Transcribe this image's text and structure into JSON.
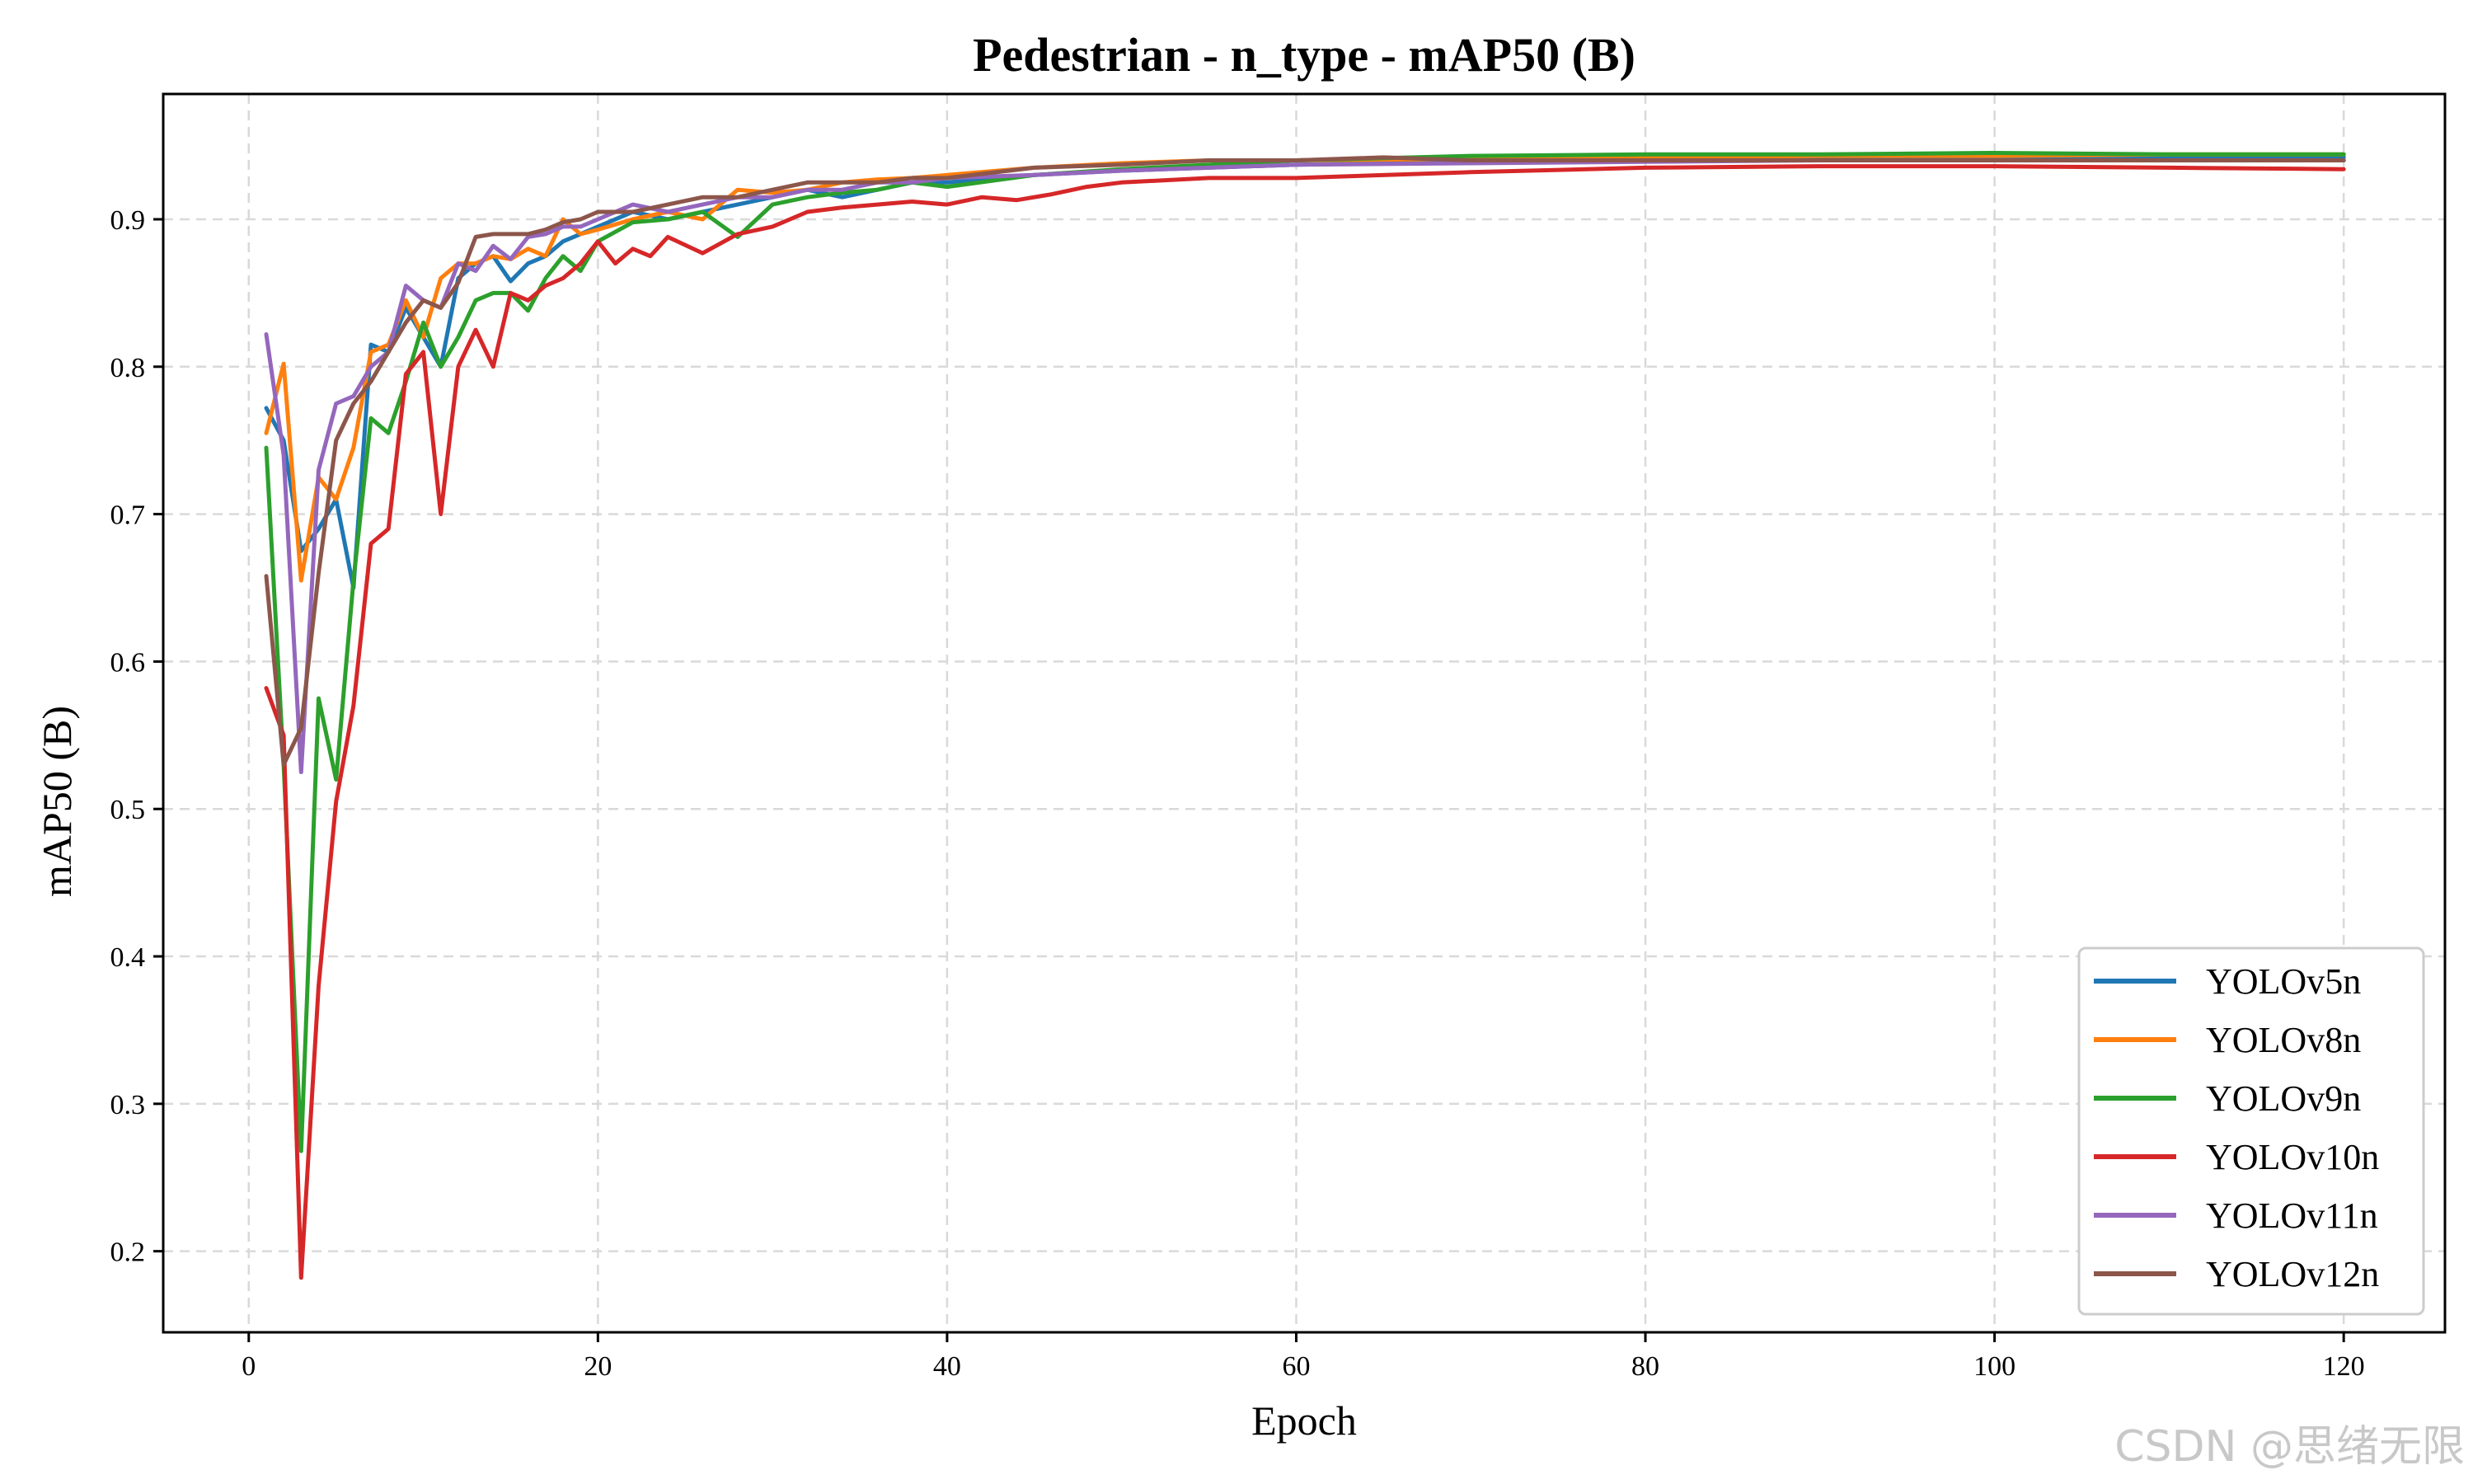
{
  "chart_data": {
    "type": "line",
    "title": "Pedestrian - n_type - mAP50 (B)",
    "xlabel": "Epoch",
    "ylabel": "mAP50 (B)",
    "xlim": [
      -4.9,
      125.8
    ],
    "ylim": [
      0.145,
      0.985
    ],
    "xticks": [
      0,
      20,
      40,
      60,
      80,
      100,
      120
    ],
    "yticks": [
      0.2,
      0.3,
      0.4,
      0.5,
      0.6,
      0.7,
      0.8,
      0.9
    ],
    "xtick_labels": [
      "0",
      "20",
      "40",
      "60",
      "80",
      "100",
      "120"
    ],
    "ytick_labels": [
      "0.2",
      "0.3",
      "0.4",
      "0.5",
      "0.6",
      "0.7",
      "0.8",
      "0.9"
    ],
    "grid": true,
    "legend_position": "lower-right",
    "series": [
      {
        "name": "YOLOv5n",
        "color": "#1f77b4",
        "x": [
          1,
          2,
          3,
          4,
          5,
          6,
          7,
          8,
          9,
          10,
          11,
          12,
          13,
          14,
          15,
          16,
          17,
          18,
          19,
          20,
          22,
          24,
          26,
          28,
          30,
          32,
          34,
          36,
          38,
          40,
          45,
          50,
          55,
          60,
          70,
          80,
          90,
          100,
          110,
          120
        ],
        "values": [
          0.772,
          0.75,
          0.675,
          0.69,
          0.71,
          0.65,
          0.815,
          0.81,
          0.84,
          0.82,
          0.8,
          0.86,
          0.87,
          0.875,
          0.858,
          0.87,
          0.875,
          0.885,
          0.89,
          0.895,
          0.905,
          0.9,
          0.905,
          0.91,
          0.915,
          0.92,
          0.915,
          0.92,
          0.925,
          0.925,
          0.93,
          0.933,
          0.935,
          0.937,
          0.939,
          0.94,
          0.941,
          0.942,
          0.942,
          0.942
        ]
      },
      {
        "name": "YOLOv8n",
        "color": "#ff7f0e",
        "x": [
          1,
          2,
          3,
          4,
          5,
          6,
          7,
          8,
          9,
          10,
          11,
          12,
          13,
          14,
          15,
          16,
          17,
          18,
          19,
          20,
          22,
          24,
          26,
          28,
          30,
          32,
          34,
          36,
          38,
          40,
          45,
          50,
          55,
          60,
          70,
          80,
          90,
          100,
          110,
          120
        ],
        "values": [
          0.755,
          0.802,
          0.655,
          0.725,
          0.71,
          0.745,
          0.81,
          0.815,
          0.845,
          0.82,
          0.86,
          0.87,
          0.87,
          0.875,
          0.873,
          0.88,
          0.875,
          0.9,
          0.89,
          0.893,
          0.9,
          0.905,
          0.9,
          0.92,
          0.918,
          0.92,
          0.925,
          0.927,
          0.928,
          0.93,
          0.935,
          0.938,
          0.94,
          0.94,
          0.941,
          0.942,
          0.943,
          0.943,
          0.944,
          0.944
        ]
      },
      {
        "name": "YOLOv9n",
        "color": "#2ca02c",
        "x": [
          1,
          2,
          3,
          4,
          5,
          6,
          7,
          8,
          9,
          10,
          11,
          12,
          13,
          14,
          15,
          16,
          17,
          18,
          19,
          20,
          22,
          24,
          26,
          28,
          30,
          32,
          34,
          36,
          38,
          40,
          45,
          50,
          55,
          60,
          70,
          80,
          90,
          100,
          110,
          120
        ],
        "values": [
          0.745,
          0.53,
          0.268,
          0.575,
          0.52,
          0.655,
          0.765,
          0.755,
          0.79,
          0.83,
          0.8,
          0.82,
          0.845,
          0.85,
          0.85,
          0.838,
          0.86,
          0.875,
          0.865,
          0.885,
          0.898,
          0.9,
          0.905,
          0.888,
          0.91,
          0.915,
          0.918,
          0.92,
          0.925,
          0.922,
          0.93,
          0.934,
          0.937,
          0.94,
          0.943,
          0.944,
          0.944,
          0.945,
          0.944,
          0.944
        ]
      },
      {
        "name": "YOLOv10n",
        "color": "#d62728",
        "x": [
          1,
          2,
          3,
          4,
          5,
          6,
          7,
          8,
          9,
          10,
          11,
          12,
          13,
          14,
          15,
          16,
          17,
          18,
          19,
          20,
          21,
          22,
          23,
          24,
          26,
          28,
          30,
          32,
          34,
          36,
          38,
          40,
          42,
          44,
          46,
          48,
          50,
          55,
          60,
          70,
          80,
          90,
          100,
          110,
          120
        ],
        "values": [
          0.582,
          0.55,
          0.182,
          0.38,
          0.505,
          0.57,
          0.68,
          0.69,
          0.795,
          0.81,
          0.7,
          0.8,
          0.825,
          0.8,
          0.85,
          0.845,
          0.855,
          0.86,
          0.87,
          0.885,
          0.87,
          0.88,
          0.875,
          0.888,
          0.877,
          0.89,
          0.895,
          0.905,
          0.908,
          0.91,
          0.912,
          0.91,
          0.915,
          0.913,
          0.917,
          0.922,
          0.925,
          0.928,
          0.928,
          0.932,
          0.935,
          0.936,
          0.936,
          0.935,
          0.934
        ]
      },
      {
        "name": "YOLOv11n",
        "color": "#9467bd",
        "x": [
          1,
          2,
          3,
          4,
          5,
          6,
          7,
          8,
          9,
          10,
          11,
          12,
          13,
          14,
          15,
          16,
          17,
          18,
          19,
          20,
          22,
          24,
          26,
          28,
          30,
          32,
          34,
          36,
          38,
          40,
          45,
          50,
          55,
          60,
          70,
          80,
          90,
          100,
          110,
          120
        ],
        "values": [
          0.822,
          0.74,
          0.525,
          0.73,
          0.775,
          0.78,
          0.8,
          0.81,
          0.855,
          0.845,
          0.84,
          0.87,
          0.865,
          0.882,
          0.873,
          0.888,
          0.89,
          0.895,
          0.895,
          0.9,
          0.91,
          0.905,
          0.91,
          0.915,
          0.915,
          0.92,
          0.92,
          0.925,
          0.925,
          0.928,
          0.93,
          0.933,
          0.935,
          0.937,
          0.938,
          0.939,
          0.94,
          0.94,
          0.94,
          0.94
        ]
      },
      {
        "name": "YOLOv12n",
        "color": "#8c564b",
        "x": [
          1,
          2,
          3,
          4,
          5,
          6,
          7,
          8,
          9,
          10,
          11,
          12,
          13,
          14,
          15,
          16,
          17,
          18,
          19,
          20,
          22,
          24,
          26,
          28,
          30,
          32,
          34,
          36,
          38,
          40,
          45,
          50,
          55,
          60,
          65,
          70,
          80,
          90,
          100,
          110,
          120
        ],
        "values": [
          0.658,
          0.53,
          0.555,
          0.66,
          0.75,
          0.775,
          0.79,
          0.81,
          0.83,
          0.845,
          0.84,
          0.857,
          0.888,
          0.89,
          0.89,
          0.89,
          0.893,
          0.898,
          0.9,
          0.905,
          0.905,
          0.91,
          0.915,
          0.915,
          0.92,
          0.925,
          0.925,
          0.925,
          0.928,
          0.928,
          0.935,
          0.937,
          0.94,
          0.94,
          0.942,
          0.94,
          0.94,
          0.94,
          0.94,
          0.94,
          0.94
        ]
      }
    ]
  },
  "watermark": "CSDN @思绪无限"
}
